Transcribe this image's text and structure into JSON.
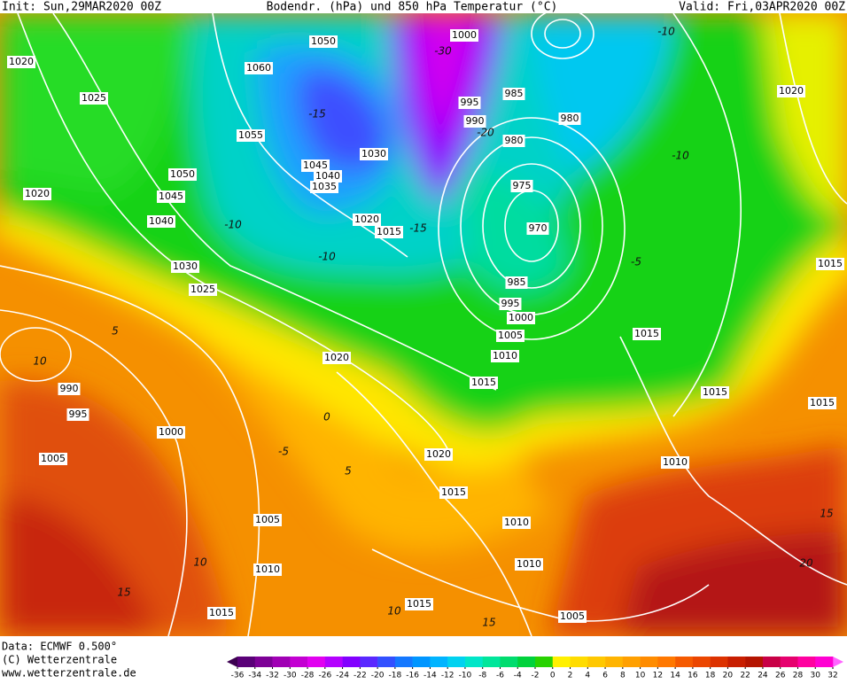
{
  "header": {
    "init": "Init: Sun,29MAR2020 00Z",
    "title": "Bodendr. (hPa) und 850 hPa Temperatur (°C)",
    "valid": "Valid: Fri,03APR2020 00Z"
  },
  "footer": {
    "data": "Data: ECMWF  0.500°",
    "copyright": "(C) Wetterzentrale",
    "url": "www.wetterzentrale.de"
  },
  "map": {
    "isobar_labels": [
      "1050",
      "1000",
      "1020",
      "1060",
      "1025",
      "995",
      "985",
      "990",
      "980",
      "1020",
      "1055",
      "980",
      "1030",
      "1045",
      "1040",
      "1050",
      "1035",
      "975",
      "1020",
      "1045",
      "1040",
      "1020",
      "1015",
      "970",
      "1030",
      "1025",
      "985",
      "995",
      "1000",
      "1005",
      "1015",
      "1010",
      "1020",
      "1015",
      "990",
      "995",
      "1000",
      "1005",
      "1020",
      "1015",
      "1010",
      "1010",
      "1005",
      "1010",
      "1010",
      "1015",
      "1015",
      "1005",
      "1015",
      "1015",
      "1015"
    ],
    "temperature_labels": [
      "-30",
      "-10",
      "-15",
      "-20",
      "-10",
      "-10",
      "-15",
      "-10",
      "-5",
      "5",
      "10",
      "0",
      "-5",
      "5",
      "10",
      "15",
      "10",
      "15",
      "15",
      "20"
    ]
  },
  "colorbar": {
    "ticks": [
      -36,
      -34,
      -32,
      -30,
      -28,
      -26,
      -24,
      -22,
      -20,
      -18,
      -16,
      -14,
      -12,
      -10,
      -8,
      -6,
      -4,
      -2,
      0,
      2,
      4,
      6,
      8,
      10,
      12,
      14,
      16,
      18,
      20,
      22,
      24,
      26,
      28,
      30,
      32
    ],
    "colors": [
      "#5a0078",
      "#7d0096",
      "#a000b4",
      "#c300d2",
      "#e100f0",
      "#b400ff",
      "#8200ff",
      "#5a28ff",
      "#3250ff",
      "#1478ff",
      "#0096ff",
      "#00b4ff",
      "#00d2f0",
      "#00e6c8",
      "#00e69b",
      "#00dc6e",
      "#00d23c",
      "#28d200",
      "#fff000",
      "#ffdc00",
      "#ffc800",
      "#ffb400",
      "#ffa000",
      "#ff8c00",
      "#ff7800",
      "#f55a00",
      "#eb4600",
      "#dc3200",
      "#c81e00",
      "#b41400",
      "#c80046",
      "#e6006e",
      "#ff00a0",
      "#ff00d2"
    ],
    "under_color": "#3c0050",
    "over_color": "#ff64ff"
  }
}
